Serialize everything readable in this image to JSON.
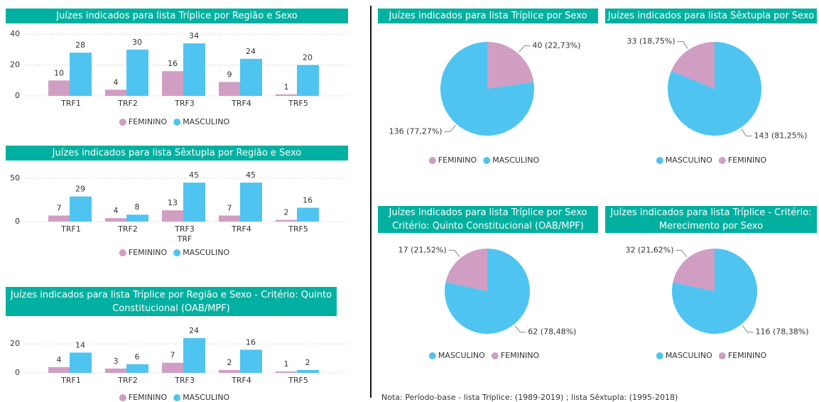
{
  "chart_data": [
    {
      "type": "bar",
      "title": "Juízes indicados para lista Tríplice por Região e Sexo",
      "categories": [
        "TRF1",
        "TRF2",
        "TRF3",
        "TRF4",
        "TRF5"
      ],
      "series": [
        {
          "name": "FEMININO",
          "color": "#d09ec3",
          "values": [
            10,
            4,
            16,
            9,
            1
          ]
        },
        {
          "name": "MASCULINO",
          "color": "#4fc4f1",
          "values": [
            28,
            30,
            34,
            24,
            20
          ]
        }
      ],
      "ylim": [
        0,
        40
      ],
      "yticks": [
        0,
        20,
        40
      ],
      "grid": true,
      "legend": "bottom"
    },
    {
      "type": "bar",
      "title": "Juízes indicados para lista Sêxtupla por Região e Sexo",
      "categories": [
        "TRF1",
        "TRF2",
        "TRF3",
        "TRF4",
        "TRF5"
      ],
      "x_label": "TRF",
      "series": [
        {
          "name": "FEMININO",
          "color": "#d09ec3",
          "values": [
            7,
            4,
            13,
            7,
            2
          ]
        },
        {
          "name": "MASCULINO",
          "color": "#4fc4f1",
          "values": [
            29,
            8,
            45,
            45,
            16
          ]
        }
      ],
      "ylim": [
        0,
        50
      ],
      "yticks": [
        0,
        50
      ],
      "grid": true,
      "legend": "bottom"
    },
    {
      "type": "bar",
      "title": "Juízes indicados para lista Tríplice por Região e Sexo - Critério: Quinto\nConstitucional (OAB/MPF)",
      "categories": [
        "TRF1",
        "TRF2",
        "TRF3",
        "TRF4",
        "TRF5"
      ],
      "series": [
        {
          "name": "FEMININO",
          "color": "#d09ec3",
          "values": [
            4,
            3,
            7,
            2,
            1
          ]
        },
        {
          "name": "MASCULINO",
          "color": "#4fc4f1",
          "values": [
            14,
            6,
            24,
            16,
            2
          ]
        }
      ],
      "ylim": [
        0,
        25
      ],
      "yticks": [
        0,
        20
      ],
      "grid": true,
      "legend": "bottom"
    },
    {
      "type": "pie",
      "title": "Juízes indicados para lista Tríplice por Sexo",
      "categories": [
        "FEMININO",
        "MASCULINO"
      ],
      "values": [
        40,
        136
      ],
      "value_labels": [
        "40 (22,73%)",
        "136 (77,27%)"
      ],
      "colors": [
        "#d09ec3",
        "#4fc4f1"
      ],
      "legend": "bottom"
    },
    {
      "type": "pie",
      "title": "Juízes indicados para lista Sêxtupla por Sexo",
      "categories": [
        "MASCULINO",
        "FEMININO"
      ],
      "values": [
        143,
        33
      ],
      "value_labels": [
        "143 (81,25%)",
        "33 (18,75%)"
      ],
      "colors": [
        "#4fc4f1",
        "#d09ec3"
      ],
      "legend": "bottom"
    },
    {
      "type": "pie",
      "title": "Juízes indicados para lista Tríplice por Sexo\nCritério: Quinto Constitucional (OAB/MPF)",
      "categories": [
        "MASCULINO",
        "FEMININO"
      ],
      "values": [
        62,
        17
      ],
      "value_labels": [
        "62 (78,48%)",
        "17 (21,52%)"
      ],
      "colors": [
        "#4fc4f1",
        "#d09ec3"
      ],
      "legend": "bottom"
    },
    {
      "type": "pie",
      "title": "Juízes indicados para lista Tríplice - Critério:\nMerecimento por Sexo",
      "categories": [
        "MASCULINO",
        "FEMININO"
      ],
      "values": [
        116,
        32
      ],
      "value_labels": [
        "116 (78,38%)",
        "32 (21,62%)"
      ],
      "colors": [
        "#4fc4f1",
        "#d09ec3"
      ],
      "legend": "bottom"
    }
  ],
  "note": "Nota: Período-base - lista Tríplice: (1989-2019) ; lista Sêxtupla: (1995-2018)"
}
